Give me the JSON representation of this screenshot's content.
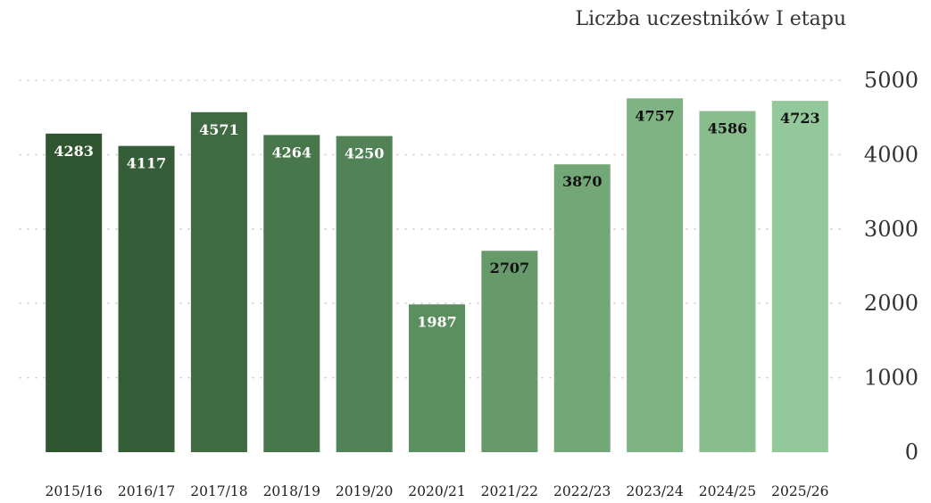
{
  "chart_data": {
    "type": "bar",
    "title": "Liczba uczestników I etapu",
    "categories": [
      "2015/16",
      "2016/17",
      "2017/18",
      "2018/19",
      "2019/20",
      "2020/21",
      "2021/22",
      "2022/23",
      "2023/24",
      "2024/25",
      "2025/26"
    ],
    "values": [
      4283,
      4117,
      4571,
      4264,
      4250,
      1987,
      2707,
      3870,
      4757,
      4586,
      4723
    ],
    "colors": [
      "#2f5531",
      "#355d37",
      "#3f6a42",
      "#48774b",
      "#518356",
      "#5c8f60",
      "#67996b",
      "#74a778",
      "#7fb384",
      "#89bd8e",
      "#93c89a"
    ],
    "ylim": [
      0,
      5000
    ],
    "yticks": [
      0,
      1000,
      2000,
      3000,
      4000,
      5000
    ],
    "yaxis_position": "right",
    "grid": true,
    "xlabel": "",
    "ylabel": ""
  }
}
